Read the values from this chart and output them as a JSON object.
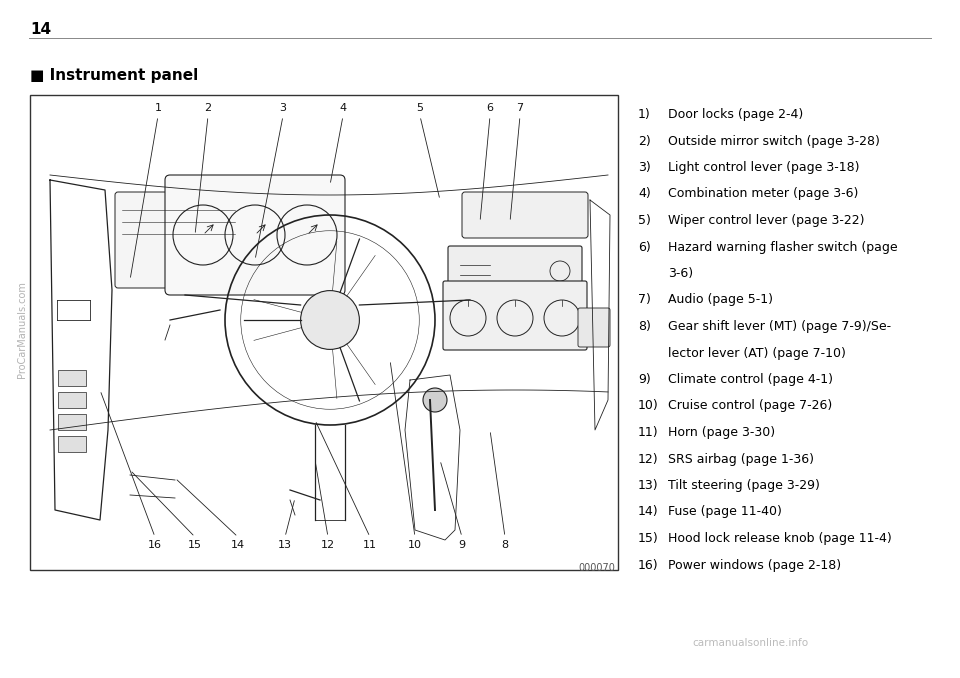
{
  "page_number": "14",
  "section_title": "■ Instrument panel",
  "bg_color": "#ffffff",
  "text_color": "#000000",
  "list_items": [
    {
      "num": "1)",
      "text": "Door locks (page 2-4)"
    },
    {
      "num": "2)",
      "text": "Outside mirror switch (page 3-28)"
    },
    {
      "num": "3)",
      "text": "Light control lever (page 3-18)"
    },
    {
      "num": "4)",
      "text": "Combination meter (page 3-6)"
    },
    {
      "num": "5)",
      "text": "Wiper control lever (page 3-22)"
    },
    {
      "num": "6)",
      "text": "Hazard warning flasher switch (page\n    3-6)"
    },
    {
      "num": "7)",
      "text": "Audio (page 5-1)"
    },
    {
      "num": "8)",
      "text": "Gear shift lever (MT) (page 7-9)/Se-\n    lector lever (AT) (page 7-10)"
    },
    {
      "num": "9)",
      "text": "Climate control (page 4-1)"
    },
    {
      "num": "10)",
      "text": "Cruise control (page 7-26)"
    },
    {
      "num": "11)",
      "text": "Horn (page 3-30)"
    },
    {
      "num": "12)",
      "text": "SRS airbag (page 1-36)"
    },
    {
      "num": "13)",
      "text": "Tilt steering (page 3-29)"
    },
    {
      "num": "14)",
      "text": "Fuse (page 11-40)"
    },
    {
      "num": "15)",
      "text": "Hood lock release knob (page 11-4)"
    },
    {
      "num": "16)",
      "text": "Power windows (page 2-18)"
    }
  ],
  "image_code": "000070",
  "watermark_text": "ProCarManuals.com",
  "footer_text": "carmanualsonline.info"
}
